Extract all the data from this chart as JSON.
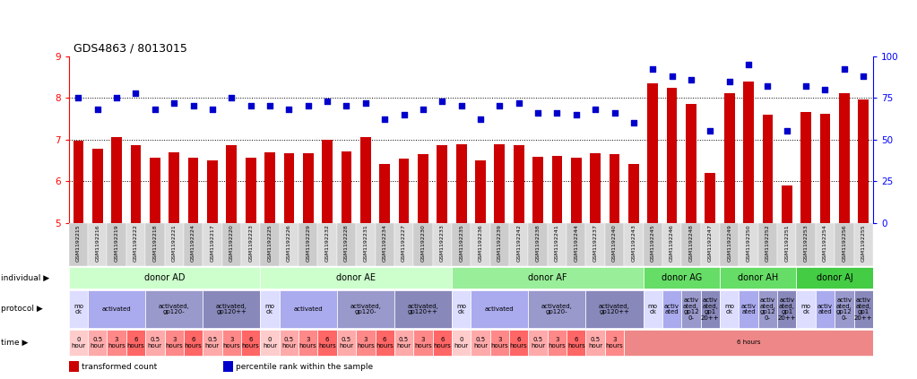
{
  "title": "GDS4863 / 8013015",
  "sample_ids": [
    "GSM1192215",
    "GSM1192216",
    "GSM1192219",
    "GSM1192222",
    "GSM1192218",
    "GSM1192221",
    "GSM1192224",
    "GSM1192217",
    "GSM1192220",
    "GSM1192223",
    "GSM1192225",
    "GSM1192226",
    "GSM1192229",
    "GSM1192232",
    "GSM1192228",
    "GSM1192231",
    "GSM1192234",
    "GSM1192227",
    "GSM1192230",
    "GSM1192233",
    "GSM1192235",
    "GSM1192236",
    "GSM1192239",
    "GSM1192242",
    "GSM1192238",
    "GSM1192241",
    "GSM1192244",
    "GSM1192237",
    "GSM1192240",
    "GSM1192243",
    "GSM1192245",
    "GSM1192246",
    "GSM1192248",
    "GSM1192247",
    "GSM1192249",
    "GSM1192250",
    "GSM1192252",
    "GSM1192251",
    "GSM1192253",
    "GSM1192254",
    "GSM1192256",
    "GSM1192255"
  ],
  "bar_values": [
    6.97,
    6.78,
    7.06,
    6.87,
    6.57,
    6.69,
    6.57,
    6.5,
    6.86,
    6.57,
    6.7,
    6.67,
    6.68,
    7.0,
    6.72,
    7.05,
    6.41,
    6.54,
    6.64,
    6.87,
    6.88,
    6.49,
    6.88,
    6.86,
    6.58,
    6.6,
    6.57,
    6.67,
    6.64,
    6.41,
    8.35,
    8.25,
    7.85,
    6.2,
    8.1,
    8.4,
    7.6,
    5.9,
    7.65,
    7.62,
    8.1,
    7.95
  ],
  "dot_values": [
    75,
    68,
    75,
    78,
    68,
    72,
    70,
    68,
    75,
    70,
    70,
    68,
    70,
    73,
    70,
    72,
    62,
    65,
    68,
    73,
    70,
    62,
    70,
    72,
    66,
    66,
    65,
    68,
    66,
    60,
    92,
    88,
    86,
    55,
    85,
    95,
    82,
    55,
    82,
    80,
    92,
    88
  ],
  "ylim_left": [
    5,
    9
  ],
  "ylim_right": [
    0,
    100
  ],
  "yticks_left": [
    5,
    6,
    7,
    8,
    9
  ],
  "yticks_right": [
    0,
    25,
    50,
    75,
    100
  ],
  "bar_color": "#cc0000",
  "dot_color": "#0000cc",
  "bg_color": "#ffffff",
  "individual_groups": [
    {
      "label": "donor AD",
      "start": 0,
      "end": 10,
      "color": "#ccffcc"
    },
    {
      "label": "donor AE",
      "start": 10,
      "end": 20,
      "color": "#ccffcc"
    },
    {
      "label": "donor AF",
      "start": 20,
      "end": 30,
      "color": "#99ee99"
    },
    {
      "label": "donor AG",
      "start": 30,
      "end": 34,
      "color": "#66dd66"
    },
    {
      "label": "donor AH",
      "start": 34,
      "end": 38,
      "color": "#66dd66"
    },
    {
      "label": "donor AJ",
      "start": 38,
      "end": 42,
      "color": "#44cc44"
    }
  ],
  "protocol_groups": [
    {
      "label": "mo\nck",
      "start": 0,
      "end": 1,
      "color": "#ddddff"
    },
    {
      "label": "activated",
      "start": 1,
      "end": 4,
      "color": "#aaaaee"
    },
    {
      "label": "activated,\ngp120-",
      "start": 4,
      "end": 7,
      "color": "#9999cc"
    },
    {
      "label": "activated,\ngp120++",
      "start": 7,
      "end": 10,
      "color": "#8888bb"
    },
    {
      "label": "mo\nck",
      "start": 10,
      "end": 11,
      "color": "#ddddff"
    },
    {
      "label": "activated",
      "start": 11,
      "end": 14,
      "color": "#aaaaee"
    },
    {
      "label": "activated,\ngp120-",
      "start": 14,
      "end": 17,
      "color": "#9999cc"
    },
    {
      "label": "activated,\ngp120++",
      "start": 17,
      "end": 20,
      "color": "#8888bb"
    },
    {
      "label": "mo\nck",
      "start": 20,
      "end": 21,
      "color": "#ddddff"
    },
    {
      "label": "activated",
      "start": 21,
      "end": 24,
      "color": "#aaaaee"
    },
    {
      "label": "activated,\ngp120-",
      "start": 24,
      "end": 27,
      "color": "#9999cc"
    },
    {
      "label": "activated,\ngp120++",
      "start": 27,
      "end": 30,
      "color": "#8888bb"
    },
    {
      "label": "mo\nck",
      "start": 30,
      "end": 31,
      "color": "#ddddff"
    },
    {
      "label": "activ\nated",
      "start": 31,
      "end": 32,
      "color": "#aaaaee"
    },
    {
      "label": "activ\nated,\ngp12\n0-",
      "start": 32,
      "end": 33,
      "color": "#9999cc"
    },
    {
      "label": "activ\nated,\ngp1\n20++",
      "start": 33,
      "end": 34,
      "color": "#8888bb"
    },
    {
      "label": "mo\nck",
      "start": 34,
      "end": 35,
      "color": "#ddddff"
    },
    {
      "label": "activ\nated",
      "start": 35,
      "end": 36,
      "color": "#aaaaee"
    },
    {
      "label": "activ\nated,\ngp12\n0-",
      "start": 36,
      "end": 37,
      "color": "#9999cc"
    },
    {
      "label": "activ\nated,\ngp1\n20++",
      "start": 37,
      "end": 38,
      "color": "#8888bb"
    },
    {
      "label": "mo\nck",
      "start": 38,
      "end": 39,
      "color": "#ddddff"
    },
    {
      "label": "activ\nated",
      "start": 39,
      "end": 40,
      "color": "#aaaaee"
    },
    {
      "label": "activ\nated,\ngp12\n0-",
      "start": 40,
      "end": 41,
      "color": "#9999cc"
    },
    {
      "label": "activ\nated,\ngp1\n20++",
      "start": 41,
      "end": 42,
      "color": "#8888bb"
    }
  ],
  "time_groups_explicit": [
    {
      "label": "0\nhour",
      "start": 0,
      "end": 1,
      "color": "#ffcccc"
    },
    {
      "label": "0.5\nhour",
      "start": 1,
      "end": 2,
      "color": "#ffaaaa"
    },
    {
      "label": "3\nhours",
      "start": 2,
      "end": 3,
      "color": "#ff8888"
    },
    {
      "label": "6\nhours",
      "start": 3,
      "end": 4,
      "color": "#ff6666"
    },
    {
      "label": "0.5\nhour",
      "start": 4,
      "end": 5,
      "color": "#ffaaaa"
    },
    {
      "label": "3\nhours",
      "start": 5,
      "end": 6,
      "color": "#ff8888"
    },
    {
      "label": "6\nhours",
      "start": 6,
      "end": 7,
      "color": "#ff6666"
    },
    {
      "label": "0.5\nhour",
      "start": 7,
      "end": 8,
      "color": "#ffaaaa"
    },
    {
      "label": "3\nhours",
      "start": 8,
      "end": 9,
      "color": "#ff8888"
    },
    {
      "label": "6\nhours",
      "start": 9,
      "end": 10,
      "color": "#ff6666"
    },
    {
      "label": "0\nhour",
      "start": 10,
      "end": 11,
      "color": "#ffcccc"
    },
    {
      "label": "0.5\nhour",
      "start": 11,
      "end": 12,
      "color": "#ffaaaa"
    },
    {
      "label": "3\nhours",
      "start": 12,
      "end": 13,
      "color": "#ff8888"
    },
    {
      "label": "6\nhours",
      "start": 13,
      "end": 14,
      "color": "#ff6666"
    },
    {
      "label": "0.5\nhour",
      "start": 14,
      "end": 15,
      "color": "#ffaaaa"
    },
    {
      "label": "3\nhours",
      "start": 15,
      "end": 16,
      "color": "#ff8888"
    },
    {
      "label": "6\nhours",
      "start": 16,
      "end": 17,
      "color": "#ff6666"
    },
    {
      "label": "0.5\nhour",
      "start": 17,
      "end": 18,
      "color": "#ffaaaa"
    },
    {
      "label": "3\nhours",
      "start": 18,
      "end": 19,
      "color": "#ff8888"
    },
    {
      "label": "6\nhours",
      "start": 19,
      "end": 20,
      "color": "#ff6666"
    },
    {
      "label": "0\nhour",
      "start": 20,
      "end": 21,
      "color": "#ffcccc"
    },
    {
      "label": "0.5\nhour",
      "start": 21,
      "end": 22,
      "color": "#ffaaaa"
    },
    {
      "label": "3\nhours",
      "start": 22,
      "end": 23,
      "color": "#ff8888"
    },
    {
      "label": "6\nhours",
      "start": 23,
      "end": 24,
      "color": "#ff6666"
    },
    {
      "label": "0.5\nhour",
      "start": 24,
      "end": 25,
      "color": "#ffaaaa"
    },
    {
      "label": "3\nhours",
      "start": 25,
      "end": 26,
      "color": "#ff8888"
    },
    {
      "label": "6\nhours",
      "start": 26,
      "end": 27,
      "color": "#ff6666"
    },
    {
      "label": "0.5\nhour",
      "start": 27,
      "end": 28,
      "color": "#ffaaaa"
    },
    {
      "label": "3\nhours",
      "start": 28,
      "end": 29,
      "color": "#ff8888"
    },
    {
      "label": "6 hours",
      "start": 29,
      "end": 42,
      "color": "#ee8888"
    }
  ],
  "left_labels": [
    "individual",
    "protocol",
    "time"
  ],
  "legend_items": [
    {
      "label": "transformed count",
      "color": "#cc0000"
    },
    {
      "label": "percentile rank within the sample",
      "color": "#0000cc"
    }
  ]
}
